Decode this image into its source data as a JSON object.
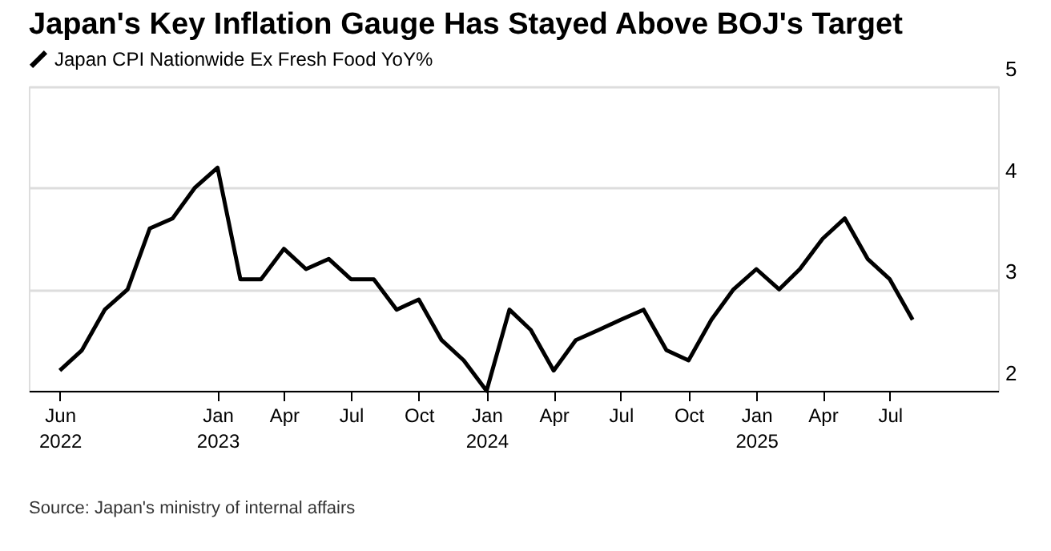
{
  "chart_data": {
    "type": "line",
    "title": "Japan's Key Inflation Gauge Has Stayed Above BOJ's Target",
    "x": [
      "2022-06",
      "2022-07",
      "2022-08",
      "2022-09",
      "2022-10",
      "2022-11",
      "2022-12",
      "2023-01",
      "2023-02",
      "2023-03",
      "2023-04",
      "2023-05",
      "2023-06",
      "2023-07",
      "2023-08",
      "2023-09",
      "2023-10",
      "2023-11",
      "2023-12",
      "2024-01",
      "2024-02",
      "2024-03",
      "2024-04",
      "2024-05",
      "2024-06",
      "2024-07",
      "2024-08",
      "2024-09",
      "2024-10",
      "2024-11",
      "2024-12",
      "2025-01",
      "2025-02",
      "2025-03",
      "2025-04",
      "2025-05",
      "2025-06",
      "2025-07",
      "2025-08"
    ],
    "series": [
      {
        "name": "Japan CPI Nationwide Ex Fresh Food YoY%",
        "color": "#000000",
        "values": [
          2.2,
          2.4,
          2.8,
          3.0,
          3.6,
          3.7,
          4.0,
          4.2,
          3.1,
          3.1,
          3.4,
          3.2,
          3.3,
          3.1,
          3.1,
          2.8,
          2.9,
          2.5,
          2.3,
          2.0,
          2.8,
          2.6,
          2.2,
          2.5,
          2.6,
          2.7,
          2.8,
          2.4,
          2.3,
          2.7,
          3.0,
          3.2,
          3.0,
          3.2,
          3.5,
          3.7,
          3.3,
          3.1,
          2.7
        ]
      }
    ],
    "xlim": [
      "2022-04-20",
      "2025-11-25"
    ],
    "xticks": [
      {
        "value": "2022-06",
        "label": "Jun\n2022"
      },
      {
        "value": "2023-01",
        "label": "Jan\n2023"
      },
      {
        "value": "2023-04",
        "label": "Apr"
      },
      {
        "value": "2023-07",
        "label": "Jul"
      },
      {
        "value": "2023-10",
        "label": "Oct"
      },
      {
        "value": "2024-01",
        "label": "Jan\n2024"
      },
      {
        "value": "2024-04",
        "label": "Apr"
      },
      {
        "value": "2024-07",
        "label": "Jul"
      },
      {
        "value": "2024-10",
        "label": "Oct"
      },
      {
        "value": "2025-01",
        "label": "Jan\n2025"
      },
      {
        "value": "2025-04",
        "label": "Apr"
      },
      {
        "value": "2025-07",
        "label": "Jul"
      }
    ],
    "ylim": [
      2,
      5
    ],
    "yticks": [
      2,
      3,
      4,
      5
    ],
    "grid": "y",
    "legend": "top left",
    "line_style": "solid",
    "marker": "none",
    "annotations": [
      "Source: Japan's ministry of internal affairs"
    ]
  }
}
